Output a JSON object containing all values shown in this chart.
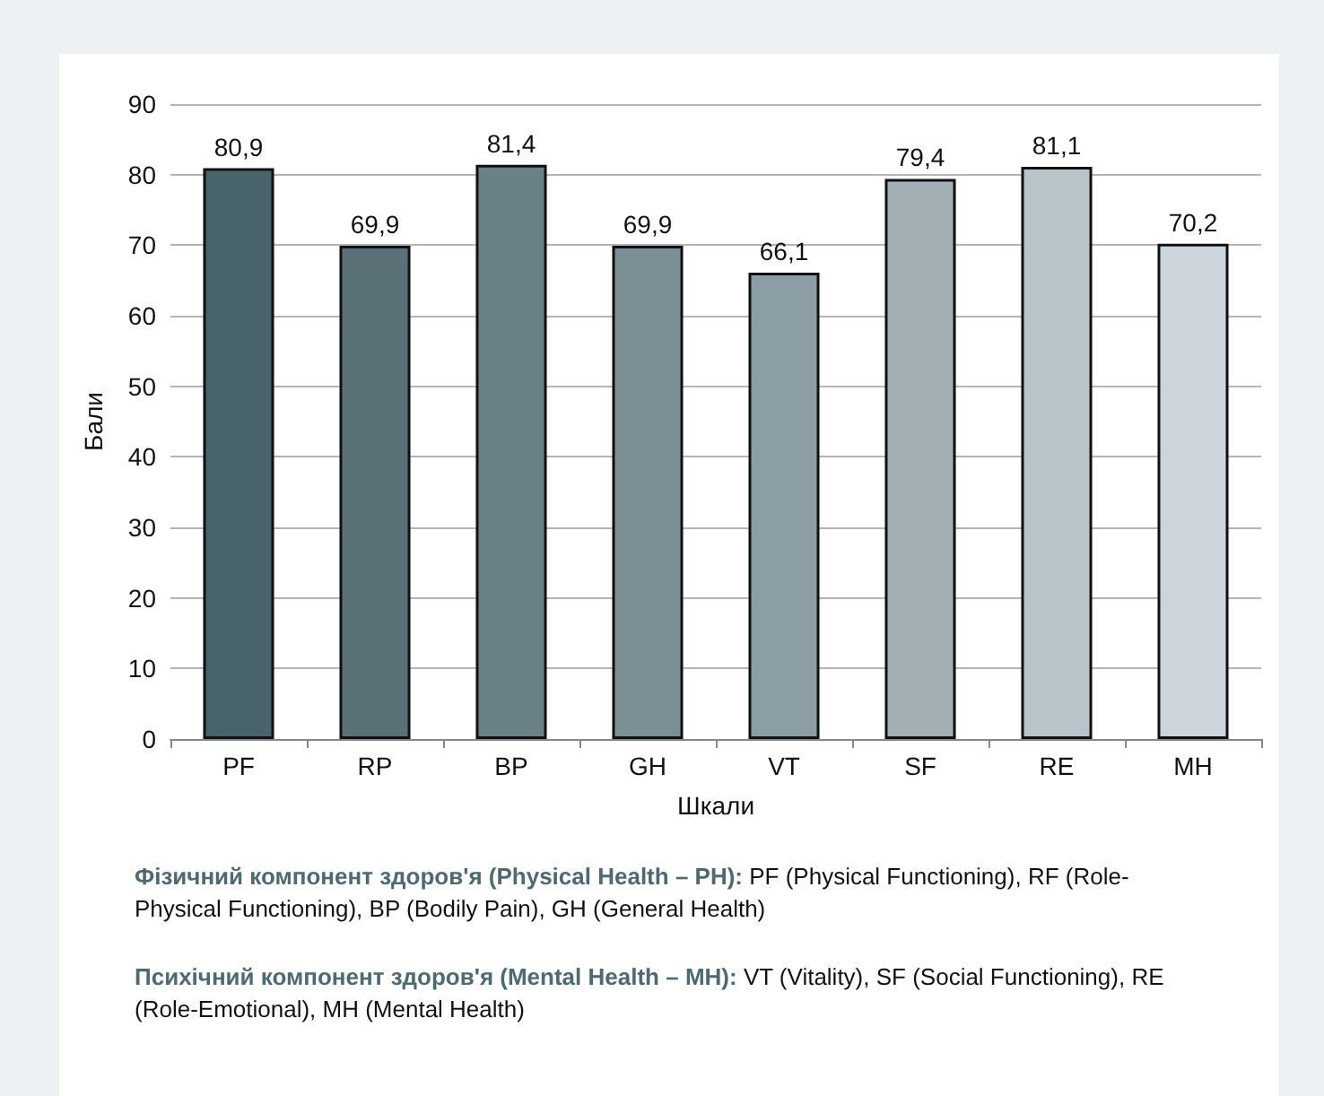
{
  "chart_data": {
    "type": "bar",
    "xlabel": "Шкали",
    "ylabel": "Бали",
    "categories": [
      "PF",
      "RP",
      "BP",
      "GH",
      "VT",
      "SF",
      "RE",
      "MH"
    ],
    "values": [
      80.9,
      69.9,
      81.4,
      69.9,
      66.1,
      79.4,
      81.1,
      70.2
    ],
    "value_labels": [
      "80,9",
      "69,9",
      "81,4",
      "69,9",
      "66,1",
      "79,4",
      "81,1",
      "70,2"
    ],
    "colors": [
      "#48636a",
      "#5b7178",
      "#6b8188",
      "#7b8f95",
      "#8c9ea5",
      "#a2b0b6",
      "#b8c3ca",
      "#ccd4dc"
    ],
    "ylim": [
      0,
      90
    ],
    "yticks": [
      0,
      10,
      20,
      30,
      40,
      50,
      60,
      70,
      80,
      90
    ],
    "grid": "y",
    "annotations": [
      "Фізичний компонент здоров'я (Physical Health – PH): PF (Physical Functioning), RF (Role-Physical Functioning), BP (Bodily Pain), GH (General Health)",
      "Психічний компонент здоров'я (Mental Health – MH): VT (Vitality), SF (Social Functioning), RE (Role-Emotional), MH (Mental Health)"
    ]
  }
}
